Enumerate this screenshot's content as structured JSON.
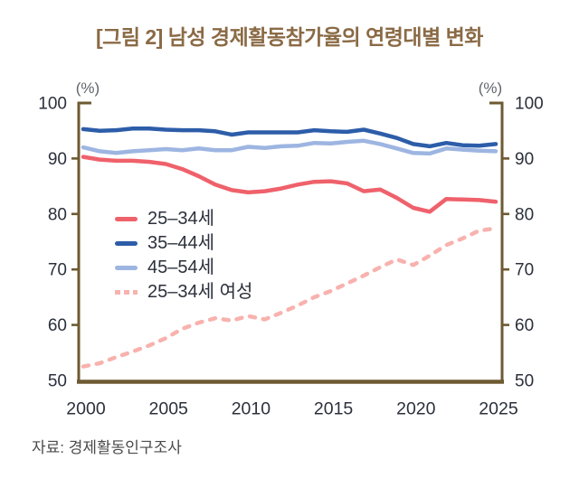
{
  "title": "[그림 2] 남성 경제활동참가율의 연령대별 변화",
  "footer": "자료: 경제활동인구조사",
  "colors": {
    "title": "#8A6A45",
    "axis": "#6E5A32",
    "tick_label": "#2B303B",
    "unit_label": "#60646C",
    "legend_text": "#2B303B",
    "footer": "#4A4A4A",
    "series_red": "#EF616B",
    "series_dark_blue": "#2D5DA9",
    "series_light_blue": "#9DB5E1",
    "series_pink": "#F8B2AE"
  },
  "chart_data": {
    "type": "line",
    "title": "[그림 2] 남성 경제활동참가율의 연령대별 변화",
    "unit_label": "(%)",
    "xlabel": "",
    "ylabel": "(%)",
    "xlim": [
      2000,
      2025
    ],
    "ylim": [
      50,
      100
    ],
    "x_ticks": [
      2000,
      2005,
      2010,
      2015,
      2020,
      2025
    ],
    "y_ticks": [
      50,
      60,
      70,
      80,
      90,
      100
    ],
    "grid": false,
    "legend_position": "inside-left",
    "x": [
      2000,
      2001,
      2002,
      2003,
      2004,
      2005,
      2006,
      2007,
      2008,
      2009,
      2010,
      2011,
      2012,
      2013,
      2014,
      2015,
      2016,
      2017,
      2018,
      2019,
      2020,
      2021,
      2022,
      2023,
      2024,
      2025
    ],
    "series": [
      {
        "name": "25–34세",
        "color": "#EF616B",
        "dash": false,
        "values": [
          90.3,
          89.8,
          89.6,
          89.6,
          89.4,
          89.0,
          88.1,
          86.8,
          85.3,
          84.3,
          83.9,
          84.1,
          84.6,
          85.3,
          85.8,
          85.9,
          85.5,
          84.1,
          84.4,
          82.9,
          81.1,
          80.4,
          82.7,
          82.6,
          82.5,
          82.2
        ]
      },
      {
        "name": "35–44세",
        "color": "#2D5DA9",
        "dash": false,
        "values": [
          95.3,
          95.0,
          95.1,
          95.4,
          95.4,
          95.2,
          95.1,
          95.1,
          94.9,
          94.3,
          94.7,
          94.7,
          94.7,
          94.7,
          95.1,
          94.9,
          94.8,
          95.2,
          94.5,
          93.7,
          92.6,
          92.2,
          92.8,
          92.4,
          92.3,
          92.6
        ]
      },
      {
        "name": "45–54세",
        "color": "#9DB5E1",
        "dash": false,
        "values": [
          92.0,
          91.3,
          91.0,
          91.3,
          91.5,
          91.7,
          91.5,
          91.8,
          91.5,
          91.5,
          92.1,
          91.9,
          92.2,
          92.3,
          92.8,
          92.7,
          93.0,
          93.2,
          92.6,
          91.8,
          91.0,
          90.9,
          91.8,
          91.6,
          91.4,
          91.3
        ]
      },
      {
        "name": "25–34세 여성",
        "color": "#F8B2AE",
        "dash": true,
        "values": [
          52.5,
          53.1,
          54.2,
          55.2,
          56.3,
          57.6,
          59.3,
          60.4,
          61.2,
          60.8,
          61.6,
          61.0,
          62.2,
          63.5,
          65.0,
          66.1,
          67.5,
          68.9,
          70.4,
          71.8,
          70.8,
          72.5,
          74.4,
          75.6,
          77.0,
          77.4
        ]
      }
    ]
  }
}
